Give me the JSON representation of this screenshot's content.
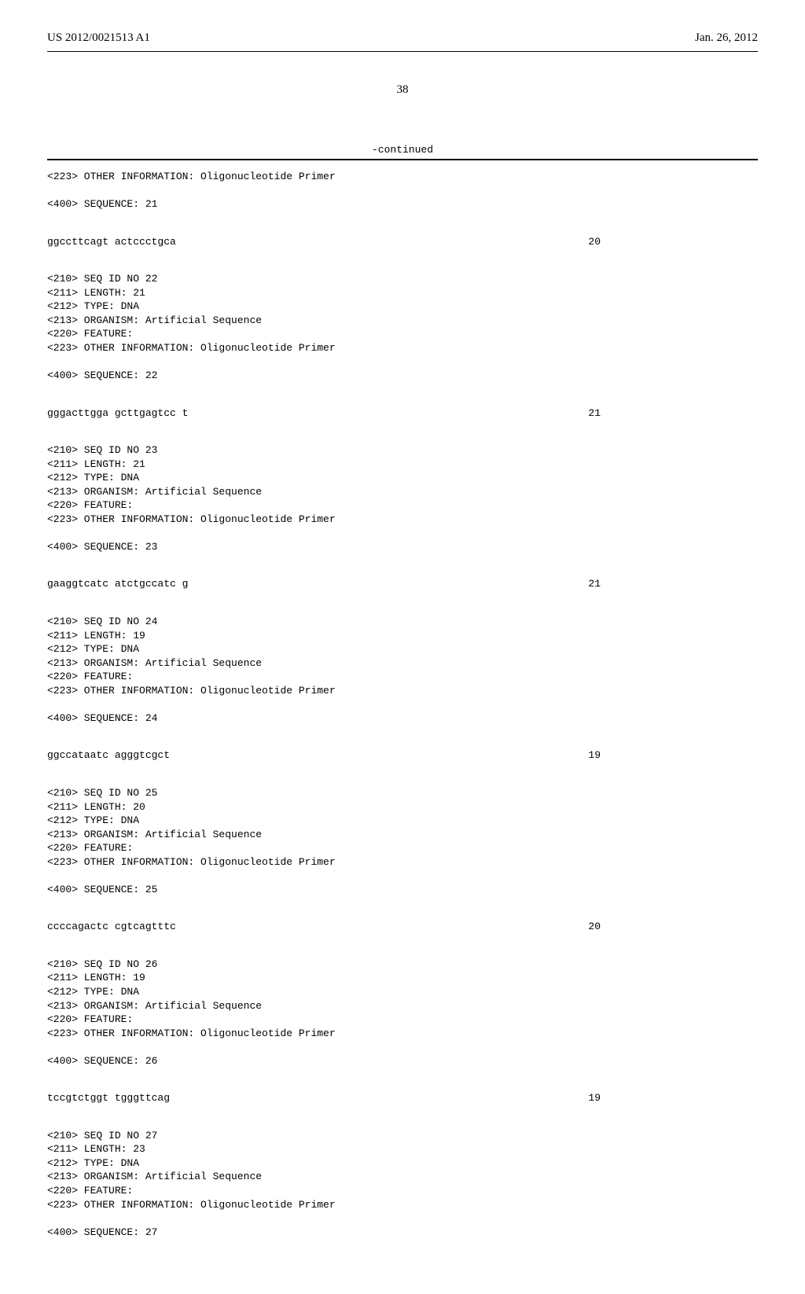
{
  "header": {
    "pub_number": "US 2012/0021513 A1",
    "pub_date": "Jan. 26, 2012"
  },
  "page_number": "38",
  "continued_label": "-continued",
  "entries": [
    {
      "pre_lines": "<223> OTHER INFORMATION: Oligonucleotide Primer\n\n<400> SEQUENCE: 21",
      "seq": "ggccttcagt actccctgca",
      "len": "20"
    },
    {
      "pre_lines": "<210> SEQ ID NO 22\n<211> LENGTH: 21\n<212> TYPE: DNA\n<213> ORGANISM: Artificial Sequence\n<220> FEATURE:\n<223> OTHER INFORMATION: Oligonucleotide Primer\n\n<400> SEQUENCE: 22",
      "seq": "gggacttgga gcttgagtcc t",
      "len": "21"
    },
    {
      "pre_lines": "<210> SEQ ID NO 23\n<211> LENGTH: 21\n<212> TYPE: DNA\n<213> ORGANISM: Artificial Sequence\n<220> FEATURE:\n<223> OTHER INFORMATION: Oligonucleotide Primer\n\n<400> SEQUENCE: 23",
      "seq": "gaaggtcatc atctgccatc g",
      "len": "21"
    },
    {
      "pre_lines": "<210> SEQ ID NO 24\n<211> LENGTH: 19\n<212> TYPE: DNA\n<213> ORGANISM: Artificial Sequence\n<220> FEATURE:\n<223> OTHER INFORMATION: Oligonucleotide Primer\n\n<400> SEQUENCE: 24",
      "seq": "ggccataatc agggtcgct",
      "len": "19"
    },
    {
      "pre_lines": "<210> SEQ ID NO 25\n<211> LENGTH: 20\n<212> TYPE: DNA\n<213> ORGANISM: Artificial Sequence\n<220> FEATURE:\n<223> OTHER INFORMATION: Oligonucleotide Primer\n\n<400> SEQUENCE: 25",
      "seq": "ccccagactc cgtcagtttc",
      "len": "20"
    },
    {
      "pre_lines": "<210> SEQ ID NO 26\n<211> LENGTH: 19\n<212> TYPE: DNA\n<213> ORGANISM: Artificial Sequence\n<220> FEATURE:\n<223> OTHER INFORMATION: Oligonucleotide Primer\n\n<400> SEQUENCE: 26",
      "seq": "tccgtctggt tgggttcag",
      "len": "19"
    },
    {
      "pre_lines": "<210> SEQ ID NO 27\n<211> LENGTH: 23\n<212> TYPE: DNA\n<213> ORGANISM: Artificial Sequence\n<220> FEATURE:\n<223> OTHER INFORMATION: Oligonucleotide Primer\n\n<400> SEQUENCE: 27",
      "seq": "",
      "len": ""
    }
  ]
}
